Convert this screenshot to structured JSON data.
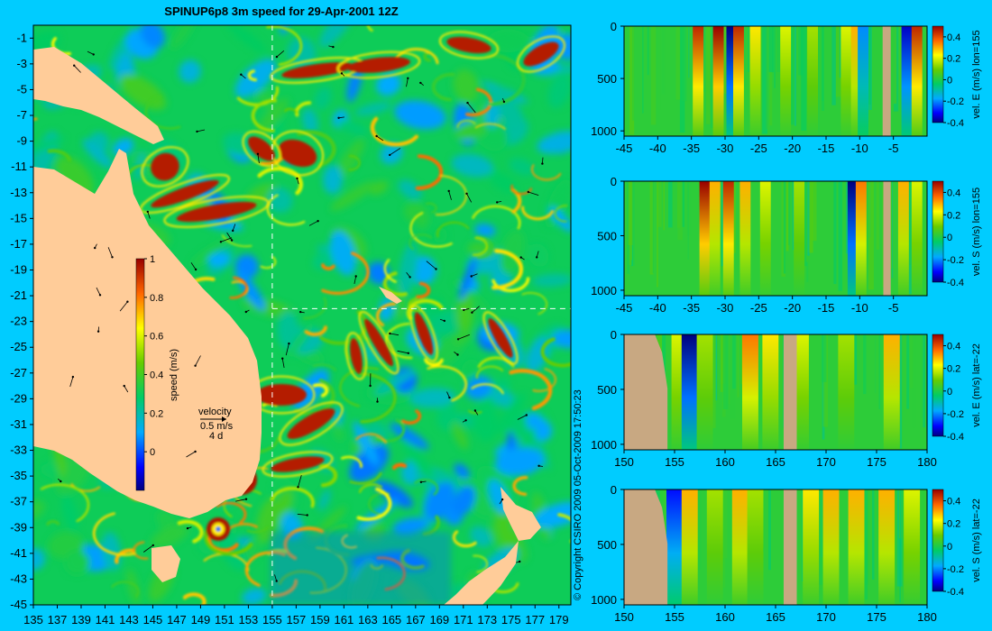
{
  "title": "SPINUP6p8 3m speed for 29-Apr-2001 12Z",
  "copyright": "© Copyright CSIRO 2009   05-Oct-2009 17:50:23",
  "colors": {
    "background": "#00ccff",
    "land": "#ffcc99",
    "land_section": "#c8a882",
    "guide": "#ffffff"
  },
  "chart_data": [
    {
      "type": "heatmap",
      "name": "map",
      "title": "SPINUP6p8 3m speed for 29-Apr-2001 12Z",
      "xlim": [
        135,
        180
      ],
      "ylim": [
        -45,
        0
      ],
      "xticks": [
        135,
        137,
        139,
        141,
        143,
        145,
        147,
        149,
        151,
        153,
        155,
        157,
        159,
        161,
        163,
        165,
        167,
        169,
        171,
        173,
        175,
        177,
        179
      ],
      "yticks": [
        -1,
        -3,
        -5,
        -7,
        -9,
        -11,
        -13,
        -15,
        -17,
        -19,
        -21,
        -23,
        -25,
        -27,
        -29,
        -31,
        -33,
        -35,
        -37,
        -39,
        -41,
        -43,
        -45
      ],
      "guide_lon": 155,
      "guide_lat": -22,
      "colorbar": {
        "label": "speed (m/s)",
        "range": [
          -0.2,
          1
        ],
        "ticks": [
          0,
          0.2,
          0.4,
          0.6,
          0.8,
          1
        ]
      },
      "velocity_key": {
        "label": "velocity",
        "scale": "0.5 m/s",
        "period": "4 d"
      }
    },
    {
      "type": "heatmap",
      "name": "section-1",
      "xlim": [
        -45,
        0
      ],
      "xticks": [
        -45,
        -40,
        -35,
        -30,
        -25,
        -20,
        -15,
        -10,
        -5
      ],
      "ylim": [
        1050,
        0
      ],
      "yticks": [
        0,
        500,
        1000
      ],
      "colorbar": {
        "label": "vel. E (m/s)  lon=155",
        "range": [
          -0.4,
          0.5
        ],
        "ticks": [
          0.4,
          0.2,
          0,
          -0.2,
          -0.4
        ]
      },
      "jets": [
        [
          -34,
          0.45
        ],
        [
          -31,
          0.5
        ],
        [
          -29,
          -0.4
        ],
        [
          -28,
          0.45
        ],
        [
          -25.5,
          0.25
        ],
        [
          -21,
          0.2
        ],
        [
          -17,
          0.15
        ],
        [
          -12,
          0.2
        ],
        [
          -10.5,
          0.3
        ],
        [
          -9.5,
          -0.2
        ],
        [
          -3,
          -0.35
        ],
        [
          -1.5,
          0.45
        ]
      ],
      "land": [
        [
          -6.6,
          -5.4
        ]
      ]
    },
    {
      "type": "heatmap",
      "name": "section-2",
      "xlim": [
        -45,
        0
      ],
      "xticks": [
        -45,
        -40,
        -35,
        -30,
        -25,
        -20,
        -15,
        -10,
        -5
      ],
      "ylim": [
        1050,
        0
      ],
      "yticks": [
        0,
        500,
        1000
      ],
      "colorbar": {
        "label": "vel. S (m/s)  lon=155",
        "range": [
          -0.4,
          0.5
        ],
        "ticks": [
          0.4,
          0.2,
          0,
          -0.2,
          -0.4
        ]
      },
      "jets": [
        [
          -33,
          0.5
        ],
        [
          -31.5,
          0.3
        ],
        [
          -29.5,
          0.45
        ],
        [
          -27,
          0.3
        ],
        [
          -24,
          0.2
        ],
        [
          -19,
          0.15
        ],
        [
          -11,
          -0.4
        ],
        [
          -9.8,
          0.35
        ],
        [
          -3.5,
          0.3
        ],
        [
          -1.5,
          0.2
        ]
      ],
      "land": [
        [
          -6.5,
          -5.4
        ]
      ]
    },
    {
      "type": "heatmap",
      "name": "section-3",
      "xlim": [
        150,
        180
      ],
      "xticks": [
        150,
        155,
        160,
        165,
        170,
        175,
        180
      ],
      "ylim": [
        1050,
        0
      ],
      "yticks": [
        0,
        500,
        1000
      ],
      "colorbar": {
        "label": "vel. E (m/s)  lat=-22",
        "range": [
          -0.4,
          0.5
        ],
        "ticks": [
          0.4,
          0.2,
          0,
          -0.2,
          -0.4
        ]
      },
      "jets": [
        [
          155.5,
          0.2
        ],
        [
          156.5,
          -0.4
        ],
        [
          158,
          0.15
        ],
        [
          162.5,
          0.35
        ],
        [
          164.5,
          0.25
        ],
        [
          167.5,
          0.2
        ],
        [
          172,
          0.15
        ],
        [
          176.5,
          0.3
        ]
      ],
      "land": [
        [
          150,
          154.3
        ],
        [
          165.8,
          167.1
        ]
      ]
    },
    {
      "type": "heatmap",
      "name": "section-4",
      "xlim": [
        150,
        180
      ],
      "xticks": [
        150,
        155,
        160,
        165,
        170,
        175,
        180
      ],
      "ylim": [
        1050,
        0
      ],
      "yticks": [
        0,
        500,
        1000
      ],
      "colorbar": {
        "label": "vel. S (m/s)  lat=-22",
        "range": [
          -0.4,
          0.5
        ],
        "ticks": [
          0.4,
          0.2,
          0,
          -0.2,
          -0.4
        ]
      },
      "jets": [
        [
          155,
          -0.3
        ],
        [
          156.5,
          0.3
        ],
        [
          159,
          0.15
        ],
        [
          161.5,
          0.3
        ],
        [
          163,
          0.15
        ],
        [
          168.5,
          0.25
        ],
        [
          170.5,
          0.3
        ],
        [
          173,
          0.3
        ],
        [
          176,
          0.3
        ],
        [
          178.5,
          0.2
        ]
      ],
      "land": [
        [
          150,
          154.3
        ],
        [
          165.8,
          167.1
        ]
      ]
    }
  ]
}
